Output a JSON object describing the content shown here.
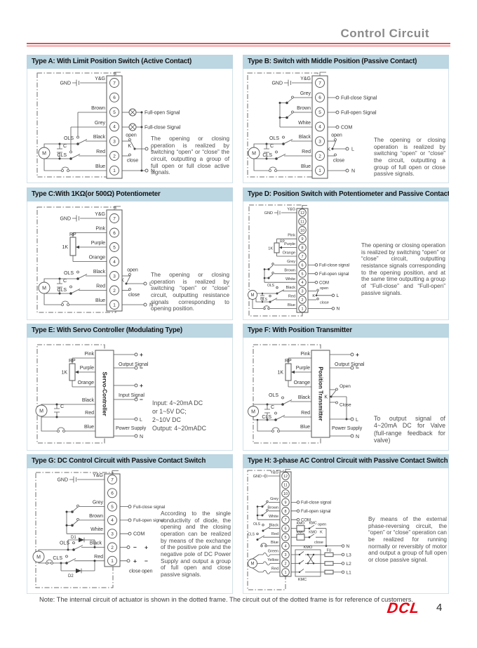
{
  "page": {
    "title": "Control Circuit",
    "note": "Note: The internal circuit of actuator is shown in the dotted frame.  The circuit out of the dotted frame is for reference of customers.",
    "logo": "DCL",
    "page_number": "4"
  },
  "colors": {
    "accent_red": "#e94b50",
    "panel_header_bg": "#bcd6e2",
    "logo_red": "#e60012",
    "title_gray": "#8a8a8a"
  },
  "common": {
    "gnd": "GND",
    "yg": "Y&G",
    "grey": "Grey",
    "brown": "Brown",
    "white": "White",
    "black": "Black",
    "red": "Red",
    "blue": "Blue",
    "pink": "Pink",
    "purple": "Purple",
    "orange": "Orange",
    "green": "Green",
    "yellow": "Yellow",
    "ols": "OLS",
    "cls": "CLS",
    "c": "C",
    "m": "M",
    "rp": "RP",
    "r1k": "1K",
    "open": "open",
    "close": "close",
    "open_c": "Open",
    "close_c": "Close",
    "k": "K",
    "l": "L",
    "n": "N",
    "com": "COM",
    "plus": "+",
    "minus": "−",
    "full_open": "Full-open Signal",
    "full_close": "Full-close Signal",
    "full_open_lc": "Full-open signal",
    "full_close_lc": "Full-close signal",
    "output_signal": "Output Signal",
    "input_signal": "Input Signal",
    "power_supply": "Power Supply",
    "d1": "D1",
    "d2": "D2",
    "kmo": "KMO",
    "kmc": "KMC",
    "fu": "FU",
    "l1": "L1",
    "l2": "L2",
    "l3": "L3"
  },
  "panels": {
    "a": {
      "title": "Type A: With Limit Position Switch (Active Contact)",
      "terminals": [
        "7",
        "6",
        "5",
        "4",
        "3",
        "2",
        "1"
      ],
      "description": "The opening or closing operation is realized by switching “open” or “close” the circuit, outputting a group of full open or full close active signals."
    },
    "b": {
      "title": "Type B: Switch with Middle Position (Passive Contact)",
      "terminals": [
        "7",
        "6",
        "5",
        "4",
        "3",
        "2",
        "1"
      ],
      "description": "The opening or closing operation is realized by switching “open” or “close” the circuit, outputting a group of full open or close passive signals."
    },
    "c": {
      "title": "Type C:With 1KΩ(or 500Ω) Potentiometer",
      "terminals": [
        "7",
        "6",
        "5",
        "4",
        "3",
        "2",
        "1"
      ],
      "description": "The opening or closing operation is realized by switching “open” or “close” circuit, outputting resistance signals corresponding to opening position."
    },
    "d": {
      "title": "Type D: Position Switch with Potentiometer and Passive Contact",
      "terminals": [
        "12",
        "11",
        "10",
        "9",
        "8",
        "7",
        "6",
        "5",
        "4",
        "3",
        "2",
        "1"
      ],
      "description": "The opening or closing operation is realized by switching “open” or “close” circuit, outputting resistance signals corresponding to the opening position, and at the same time outputting a group of “Full-close” and “Full-open” passive signals."
    },
    "e": {
      "title": "Type E: With Servo Controller (Modulating Type)",
      "box_label": "Servo-Controller",
      "io_note": [
        "Input: 4~20mA DC",
        "or 1~5V DC;",
        "2~10V DC",
        "Output: 4~20mADC"
      ]
    },
    "f": {
      "title": "Type F: With Position Transmitter",
      "box_label": "Position Transmitter",
      "description": "To output signal of 4~20mA DC for Valve (full-range feedback for valve)"
    },
    "g": {
      "title": "Type G: DC Control Circuit with Passive Contact Switch",
      "terminals": [
        "7",
        "6",
        "5",
        "4",
        "3",
        "2",
        "1"
      ],
      "description": "According to the single conductivity of diode, the opening and the closing operation can be realized by means of the exchange of the positive pole and the negative pole of DC Power Supply and output a group of full open and close passive signals."
    },
    "h": {
      "title": "Type H: 3-phase AC Control Circuit with Passive Contact Switch",
      "terminals": [
        "12",
        "11",
        "10",
        "9",
        "8",
        "7",
        "6",
        "5",
        "4",
        "3",
        "2",
        "1"
      ],
      "description": "By means of the external phase-reversing circuit, the “open” or “close” operation can be realized for running normally or reversibly of motor and output a group of full open or close passive signal."
    }
  }
}
